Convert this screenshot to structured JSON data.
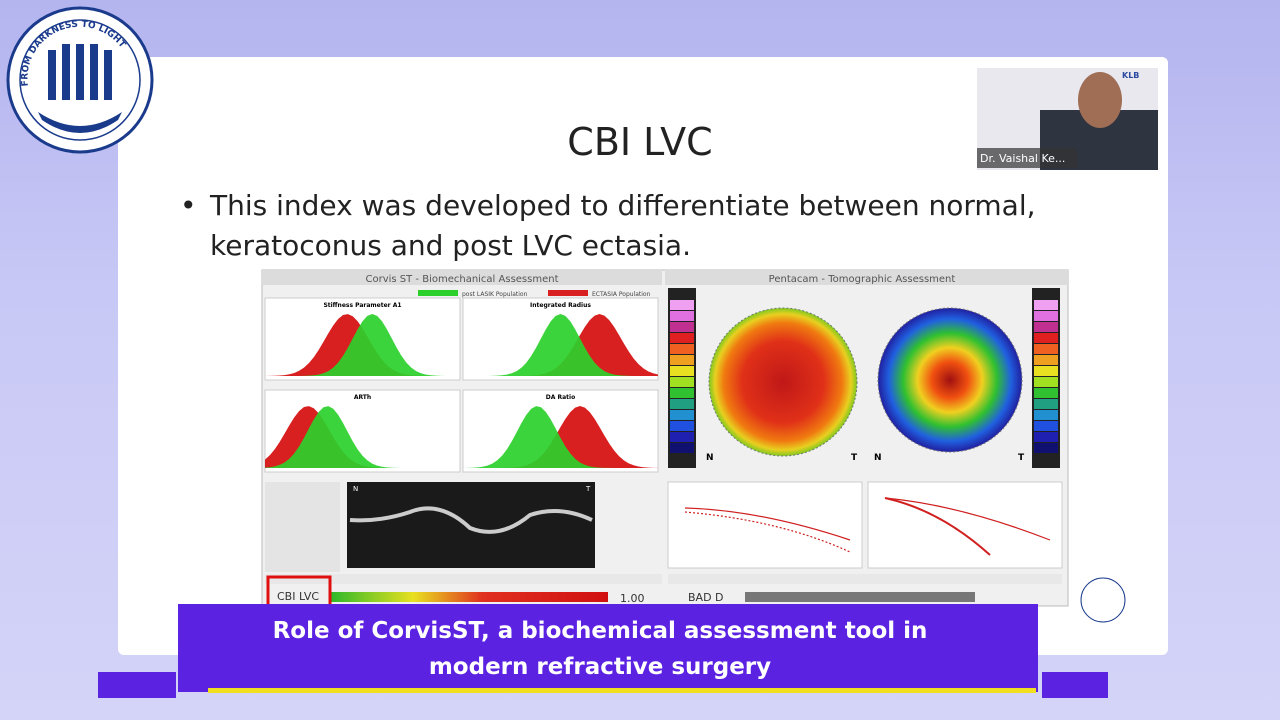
{
  "logo": {
    "text": "FROM DARKNESS TO LIGHT"
  },
  "presenter": {
    "name": "Dr. Vaishal Ke...",
    "org": "KLB"
  },
  "slide": {
    "title": "CBI LVC",
    "bullets": [
      "This index was developed to differentiate between normal, keratoconus and post LVC ectasia."
    ],
    "device": {
      "left_title": "Corvis ST - Biomechanical Assessment",
      "right_title": "Pentacam - Tomographic Assessment",
      "legend": [
        "post LASIK Population",
        "ECTASIA Population"
      ],
      "plots": [
        "Stiffness Parameter A1",
        "Integrated Radius",
        "ARTh",
        "DA Ratio"
      ],
      "index_label": "CBI LVC",
      "index_value": "1.00",
      "bad_label": "BAD D",
      "nasal": "N",
      "temporal": "T"
    }
  },
  "banner": {
    "lines": [
      "Role of  CorvisST, a biochemical assessment tool in",
      "modern refractive surgery"
    ]
  }
}
